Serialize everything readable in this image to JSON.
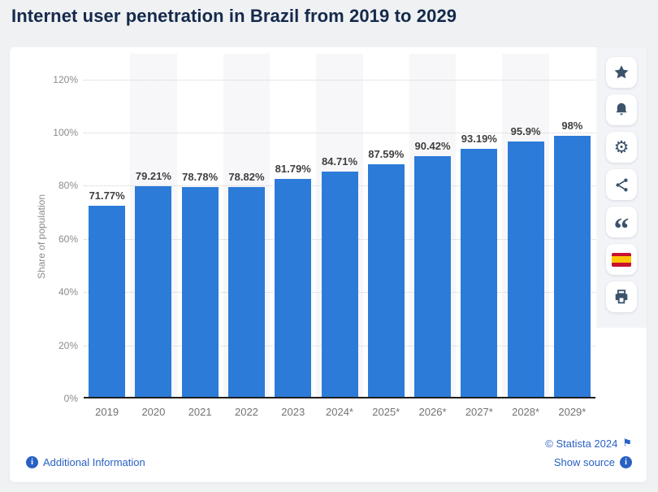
{
  "page_title": "Internet user penetration in Brazil from 2019 to 2029",
  "chart_data": {
    "type": "bar",
    "title": "Internet user penetration in Brazil from 2019 to 2029",
    "xlabel": "",
    "ylabel": "Share of population",
    "ylim": [
      0,
      120
    ],
    "ytick_step": 20,
    "ytick_labels": [
      "0%",
      "20%",
      "40%",
      "60%",
      "80%",
      "100%",
      "120%"
    ],
    "grid": true,
    "legend": false,
    "categories": [
      "2019",
      "2020",
      "2021",
      "2022",
      "2023",
      "2024*",
      "2025*",
      "2026*",
      "2027*",
      "2028*",
      "2029*"
    ],
    "values": [
      71.77,
      79.21,
      78.78,
      78.82,
      81.79,
      84.71,
      87.59,
      90.42,
      93.19,
      95.9,
      98
    ],
    "value_labels": [
      "71.77%",
      "79.21%",
      "78.78%",
      "78.82%",
      "81.79%",
      "84.71%",
      "87.59%",
      "90.42%",
      "93.19%",
      "95.9%",
      "98%"
    ],
    "bar_color": "#2d7bd9"
  },
  "toolbar": {
    "items": [
      {
        "name": "favorite",
        "icon": "star-icon"
      },
      {
        "name": "notifications",
        "icon": "bell-icon"
      },
      {
        "name": "settings",
        "icon": "gear-icon"
      },
      {
        "name": "share",
        "icon": "share-icon"
      },
      {
        "name": "cite",
        "icon": "quote-icon"
      },
      {
        "name": "language-spanish",
        "icon": "spain-flag-icon"
      },
      {
        "name": "print",
        "icon": "printer-icon"
      }
    ]
  },
  "footer": {
    "additional_information_label": "Additional Information",
    "copyright_label": "© Statista 2024",
    "show_source_label": "Show source"
  },
  "colors": {
    "bar": "#2d7bd9",
    "link": "#2961c3",
    "title": "#15294b",
    "toolbar_icon": "#3b536b"
  }
}
